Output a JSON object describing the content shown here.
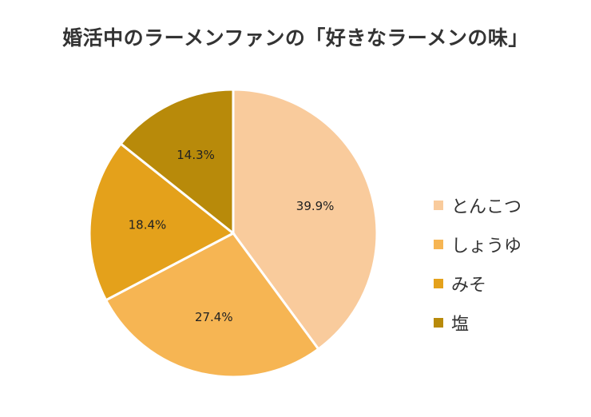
{
  "chart_data": {
    "type": "pie",
    "title": "婚活中のラーメンファンの「好きなラーメンの味」",
    "categories": [
      "とんこつ",
      "しょうゆ",
      "みそ",
      "塩"
    ],
    "values": [
      39.9,
      27.4,
      18.4,
      14.3
    ],
    "value_labels": [
      "39.9%",
      "27.4%",
      "18.4%",
      "14.3%"
    ],
    "colors": [
      "#F9CB9C",
      "#F6B553",
      "#E4A11B",
      "#B88A0A"
    ],
    "legend": "right",
    "start": "top",
    "direction": "clockwise"
  }
}
